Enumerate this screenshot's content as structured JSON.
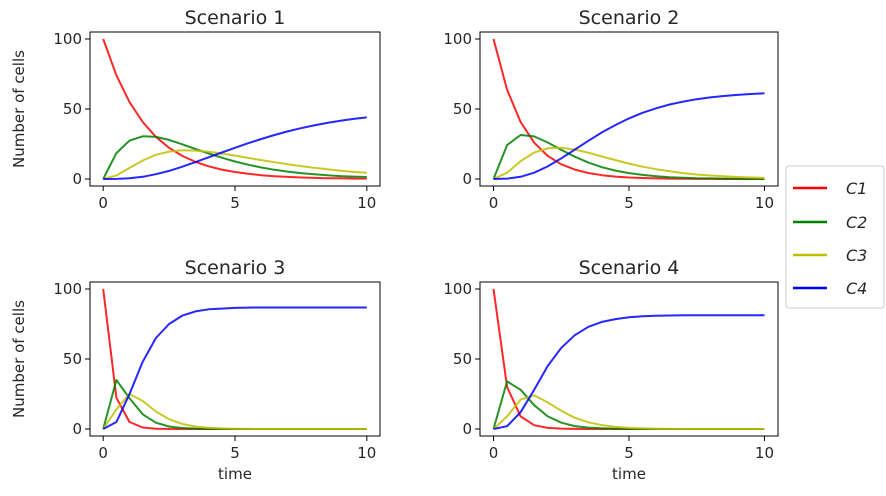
{
  "legend": {
    "placement": "right",
    "entries": [
      {
        "name": "C1",
        "color": "#ff0000"
      },
      {
        "name": "C2",
        "color": "#008000"
      },
      {
        "name": "C3",
        "color": "#bfbf00"
      },
      {
        "name": "C4",
        "color": "#0000ff"
      }
    ]
  },
  "chart_data": [
    {
      "type": "line",
      "title": "Scenario 1",
      "xlabel": "",
      "ylabel": "Number of cells",
      "xlim": [
        -0.5,
        10.5
      ],
      "ylim": [
        -5,
        105
      ],
      "xticks": [
        0,
        5,
        10
      ],
      "yticks": [
        0,
        50,
        100
      ],
      "grid": false,
      "x": [
        0,
        0.5,
        1,
        1.5,
        2,
        2.5,
        3,
        3.5,
        4,
        4.5,
        5,
        5.5,
        6,
        6.5,
        7,
        7.5,
        8,
        8.5,
        9,
        9.5,
        10
      ],
      "series": [
        {
          "name": "C1",
          "color": "#ff0000",
          "values": [
            100,
            74.1,
            54.9,
            40.7,
            30.1,
            22.3,
            16.5,
            12.2,
            9.1,
            6.7,
            5.0,
            3.7,
            2.7,
            2.0,
            1.5,
            1.1,
            0.8,
            0.6,
            0.5,
            0.3,
            0.3
          ]
        },
        {
          "name": "C2",
          "color": "#008000",
          "values": [
            0,
            18.5,
            27.4,
            30.5,
            30.1,
            27.9,
            24.8,
            21.4,
            18.2,
            15.2,
            12.5,
            10.2,
            8.2,
            6.6,
            5.3,
            4.2,
            3.4,
            2.7,
            2.1,
            1.7,
            1.4
          ]
        },
        {
          "name": "C3",
          "color": "#bfbf00",
          "values": [
            0,
            2.5,
            7.9,
            13.2,
            17.3,
            19.6,
            20.5,
            20.3,
            19.5,
            18.2,
            16.7,
            15.1,
            13.5,
            12.0,
            10.5,
            9.2,
            8.0,
            6.9,
            5.9,
            5.1,
            4.4
          ]
        },
        {
          "name": "C4",
          "color": "#0000ff",
          "values": [
            0,
            0.1,
            0.5,
            1.6,
            3.4,
            5.8,
            8.8,
            12.1,
            15.5,
            18.9,
            22.3,
            25.6,
            28.6,
            31.4,
            34.0,
            36.3,
            38.3,
            40.1,
            41.6,
            42.9,
            44.0
          ]
        }
      ]
    },
    {
      "type": "line",
      "title": "Scenario 2",
      "xlabel": "",
      "ylabel": "",
      "xlim": [
        -0.5,
        10.5
      ],
      "ylim": [
        -5,
        105
      ],
      "xticks": [
        0,
        5,
        10
      ],
      "yticks": [
        0,
        50,
        100
      ],
      "grid": false,
      "x": [
        0,
        0.5,
        1,
        1.5,
        2,
        2.5,
        3,
        3.5,
        4,
        4.5,
        5,
        5.5,
        6,
        6.5,
        7,
        7.5,
        8,
        8.5,
        9,
        9.5,
        10
      ],
      "series": [
        {
          "name": "C1",
          "color": "#ff0000",
          "values": [
            100,
            63.8,
            40.7,
            25.9,
            16.5,
            10.5,
            6.7,
            4.3,
            2.7,
            1.7,
            1.1,
            0.7,
            0.4,
            0.3,
            0.2,
            0.1,
            0.1,
            0.0,
            0.0,
            0.0,
            0.0
          ]
        },
        {
          "name": "C2",
          "color": "#008000",
          "values": [
            0,
            24.2,
            31.4,
            30.4,
            26.1,
            20.8,
            15.9,
            11.7,
            8.4,
            6.0,
            4.2,
            2.9,
            2.0,
            1.3,
            0.9,
            0.6,
            0.4,
            0.3,
            0.2,
            0.1,
            0.1
          ]
        },
        {
          "name": "C3",
          "color": "#bfbf00",
          "values": [
            0,
            4.5,
            12.8,
            18.9,
            21.9,
            22.3,
            21.0,
            18.8,
            16.1,
            13.5,
            11.0,
            8.8,
            7.0,
            5.5,
            4.2,
            3.2,
            2.5,
            1.9,
            1.4,
            1.1,
            0.8
          ]
        },
        {
          "name": "C4",
          "color": "#0000ff",
          "values": [
            0,
            0.3,
            1.6,
            4.5,
            9.0,
            14.8,
            21.0,
            27.3,
            33.3,
            38.6,
            43.3,
            47.3,
            50.5,
            53.2,
            55.3,
            57.0,
            58.3,
            59.3,
            60.1,
            60.7,
            61.2
          ]
        }
      ]
    },
    {
      "type": "line",
      "title": "Scenario 3",
      "xlabel": "time",
      "ylabel": "Number of cells",
      "xlim": [
        -0.5,
        10.5
      ],
      "ylim": [
        -5,
        105
      ],
      "xticks": [
        0,
        5,
        10
      ],
      "yticks": [
        0,
        50,
        100
      ],
      "grid": false,
      "x": [
        0,
        0.5,
        1,
        1.5,
        2,
        2.5,
        3,
        3.5,
        4,
        4.5,
        5,
        5.5,
        6,
        6.5,
        7,
        7.5,
        8,
        8.5,
        9,
        9.5,
        10
      ],
      "series": [
        {
          "name": "C1",
          "color": "#ff0000",
          "values": [
            100,
            22.3,
            5.0,
            1.1,
            0.2,
            0.1,
            0,
            0,
            0,
            0,
            0,
            0,
            0,
            0,
            0,
            0,
            0,
            0,
            0,
            0,
            0
          ]
        },
        {
          "name": "C2",
          "color": "#008000",
          "values": [
            0,
            35.0,
            22.0,
            10.5,
            4.5,
            1.8,
            0.7,
            0.3,
            0.1,
            0,
            0,
            0,
            0,
            0,
            0,
            0,
            0,
            0,
            0,
            0,
            0
          ]
        },
        {
          "name": "C3",
          "color": "#bfbf00",
          "values": [
            0,
            14.0,
            25.0,
            20.0,
            12.5,
            7.0,
            3.6,
            1.8,
            0.9,
            0.4,
            0.2,
            0.1,
            0,
            0,
            0,
            0,
            0,
            0,
            0,
            0,
            0
          ]
        },
        {
          "name": "C4",
          "color": "#0000ff",
          "values": [
            0,
            5.0,
            25.0,
            48.0,
            65.0,
            75.0,
            81.0,
            84.0,
            85.5,
            86.0,
            86.5,
            86.7,
            86.8,
            86.8,
            86.8,
            86.8,
            86.8,
            86.8,
            86.8,
            86.8,
            86.8
          ]
        }
      ]
    },
    {
      "type": "line",
      "title": "Scenario 4",
      "xlabel": "time",
      "ylabel": "",
      "xlim": [
        -0.5,
        10.5
      ],
      "ylim": [
        -5,
        105
      ],
      "xticks": [
        0,
        5,
        10
      ],
      "yticks": [
        0,
        50,
        100
      ],
      "grid": false,
      "x": [
        0,
        0.5,
        1,
        1.5,
        2,
        2.5,
        3,
        3.5,
        4,
        4.5,
        5,
        5.5,
        6,
        6.5,
        7,
        7.5,
        8,
        8.5,
        9,
        9.5,
        10
      ],
      "series": [
        {
          "name": "C1",
          "color": "#ff0000",
          "values": [
            100,
            30.0,
            9.0,
            2.7,
            0.8,
            0.3,
            0.1,
            0,
            0,
            0,
            0,
            0,
            0,
            0,
            0,
            0,
            0,
            0,
            0,
            0,
            0
          ]
        },
        {
          "name": "C2",
          "color": "#008000",
          "values": [
            0,
            34.0,
            28.0,
            17.0,
            9.0,
            4.5,
            2.1,
            1.0,
            0.5,
            0.2,
            0.1,
            0,
            0,
            0,
            0,
            0,
            0,
            0,
            0,
            0,
            0
          ]
        },
        {
          "name": "C3",
          "color": "#bfbf00",
          "values": [
            0,
            9.0,
            21.0,
            24.0,
            19.0,
            13.0,
            8.0,
            4.8,
            2.8,
            1.5,
            0.8,
            0.4,
            0.2,
            0.1,
            0,
            0,
            0,
            0,
            0,
            0,
            0
          ]
        },
        {
          "name": "C4",
          "color": "#0000ff",
          "values": [
            0,
            2.0,
            12.0,
            28.0,
            45.0,
            58.0,
            67.0,
            73.0,
            76.5,
            78.5,
            79.8,
            80.5,
            80.9,
            81.1,
            81.2,
            81.3,
            81.3,
            81.3,
            81.3,
            81.3,
            81.3
          ]
        }
      ]
    }
  ]
}
